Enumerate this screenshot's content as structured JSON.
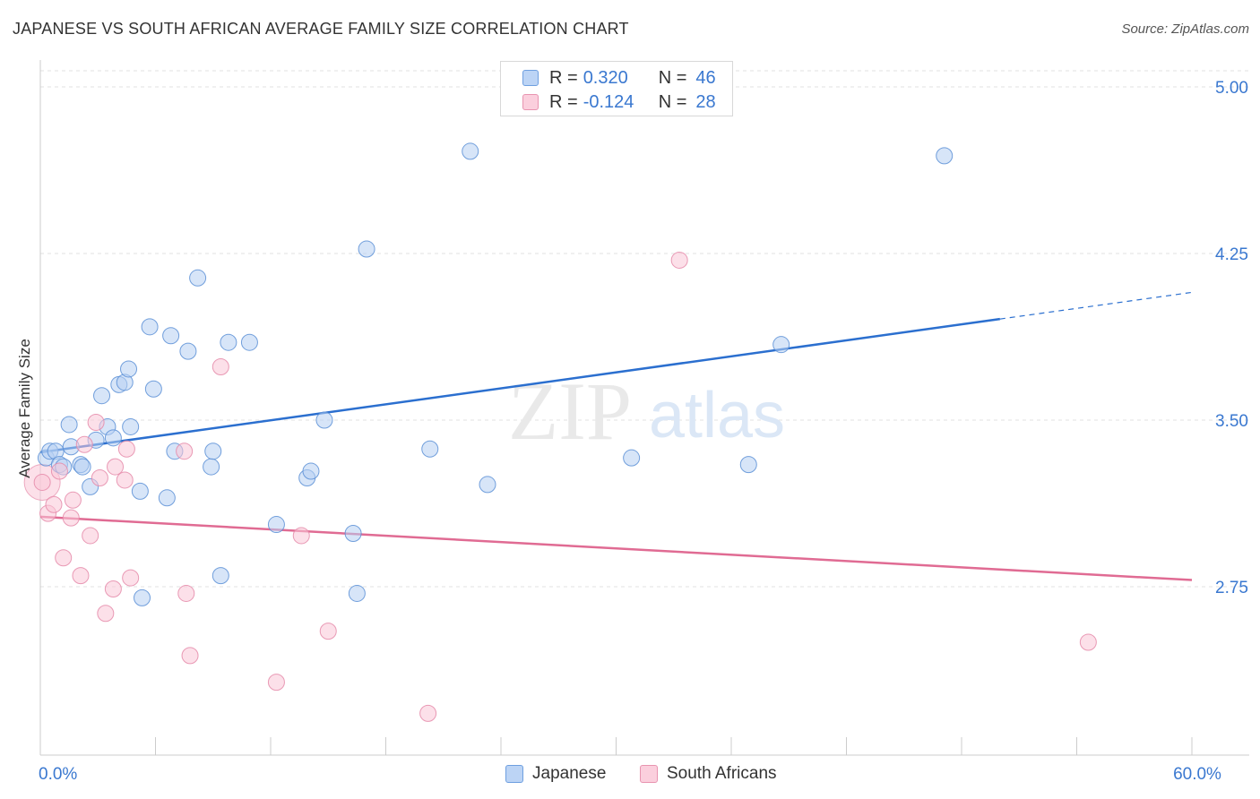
{
  "header": {
    "title": "JAPANESE VS SOUTH AFRICAN AVERAGE FAMILY SIZE CORRELATION CHART",
    "source": "Source: ZipAtlas.com"
  },
  "watermark": {
    "zip": "ZIP",
    "atlas": "atlas"
  },
  "legend": {
    "series": [
      {
        "name": "Japanese",
        "r_label": "R =",
        "r_value": "0.320",
        "n_label": "N =",
        "n_value": "46",
        "fill": "#bcd4f5",
        "stroke": "#6e9fe0"
      },
      {
        "name": "South Africans",
        "r_label": "R =",
        "r_value": "-0.124",
        "n_label": "N =",
        "n_value": "28",
        "fill": "#fbcfdd",
        "stroke": "#e894b0"
      }
    ]
  },
  "colors": {
    "japanese_fill": "#b7d0f3",
    "japanese_stroke": "#5b8fd6",
    "japanese_line": "#2b6fcf",
    "south_africans_fill": "#f9c6d7",
    "south_africans_stroke": "#e58aa9",
    "south_africans_line": "#e06b93",
    "grid": "#e2e2e2",
    "tick_label": "#3a78d0"
  },
  "chart_data": {
    "type": "scatter",
    "title": "JAPANESE VS SOUTH AFRICAN AVERAGE FAMILY SIZE CORRELATION CHART",
    "xlabel": "",
    "ylabel": "Average Family Size",
    "xlim": [
      0,
      60
    ],
    "ylim": [
      2.0,
      5.1
    ],
    "x_tick_labels": [
      {
        "value": 0,
        "label": "0.0%"
      },
      {
        "value": 60,
        "label": "60.0%"
      }
    ],
    "y_ticks": [
      {
        "value": 5.0,
        "label": "5.00"
      },
      {
        "value": 4.25,
        "label": "4.25"
      },
      {
        "value": 3.5,
        "label": "3.50"
      },
      {
        "value": 2.75,
        "label": "2.75"
      }
    ],
    "x_minor_ticks": [
      0,
      6,
      12,
      18,
      24,
      30,
      36,
      42,
      48,
      54,
      60
    ],
    "series": [
      {
        "name": "Japanese",
        "points": [
          [
            0.3,
            3.33
          ],
          [
            0.5,
            3.36
          ],
          [
            0.8,
            3.36
          ],
          [
            1.0,
            3.3
          ],
          [
            1.2,
            3.29
          ],
          [
            1.5,
            3.48
          ],
          [
            1.6,
            3.38
          ],
          [
            2.1,
            3.3
          ],
          [
            2.2,
            3.29
          ],
          [
            2.6,
            3.2
          ],
          [
            2.9,
            3.41
          ],
          [
            3.2,
            3.61
          ],
          [
            3.5,
            3.47
          ],
          [
            3.8,
            3.42
          ],
          [
            4.1,
            3.66
          ],
          [
            4.4,
            3.67
          ],
          [
            4.6,
            3.73
          ],
          [
            4.7,
            3.47
          ],
          [
            5.2,
            3.18
          ],
          [
            5.3,
            2.7
          ],
          [
            5.7,
            3.92
          ],
          [
            5.9,
            3.64
          ],
          [
            6.6,
            3.15
          ],
          [
            6.8,
            3.88
          ],
          [
            7.0,
            3.36
          ],
          [
            7.7,
            3.81
          ],
          [
            8.2,
            4.14
          ],
          [
            8.9,
            3.29
          ],
          [
            9.0,
            3.36
          ],
          [
            9.4,
            2.8
          ],
          [
            9.8,
            3.85
          ],
          [
            10.9,
            3.85
          ],
          [
            12.3,
            3.03
          ],
          [
            13.9,
            3.24
          ],
          [
            14.1,
            3.27
          ],
          [
            14.8,
            3.5
          ],
          [
            16.3,
            2.99
          ],
          [
            16.5,
            2.72
          ],
          [
            17.0,
            4.27
          ],
          [
            20.3,
            3.37
          ],
          [
            22.4,
            4.71
          ],
          [
            23.3,
            3.21
          ],
          [
            30.8,
            3.33
          ],
          [
            36.9,
            3.3
          ],
          [
            38.6,
            3.84
          ],
          [
            47.1,
            4.69
          ]
        ],
        "trend": {
          "x_start": 0,
          "y_start": 3.355,
          "x_solid_end": 50,
          "y_solid_end": 3.955,
          "x_end": 60,
          "y_end": 4.075
        }
      },
      {
        "name": "South Africans",
        "points": [
          [
            0.1,
            3.22
          ],
          [
            0.4,
            3.08
          ],
          [
            0.7,
            3.12
          ],
          [
            1.0,
            3.27
          ],
          [
            1.2,
            2.88
          ],
          [
            1.6,
            3.06
          ],
          [
            1.7,
            3.14
          ],
          [
            2.1,
            2.8
          ],
          [
            2.3,
            3.39
          ],
          [
            2.6,
            2.98
          ],
          [
            2.9,
            3.49
          ],
          [
            3.1,
            3.24
          ],
          [
            3.4,
            2.63
          ],
          [
            3.8,
            2.74
          ],
          [
            3.9,
            3.29
          ],
          [
            4.4,
            3.23
          ],
          [
            4.5,
            3.37
          ],
          [
            4.7,
            2.79
          ],
          [
            7.5,
            3.36
          ],
          [
            7.6,
            2.72
          ],
          [
            7.8,
            2.44
          ],
          [
            9.4,
            3.74
          ],
          [
            12.3,
            2.32
          ],
          [
            13.6,
            2.98
          ],
          [
            15.0,
            2.55
          ],
          [
            20.2,
            2.18
          ],
          [
            33.3,
            4.22
          ],
          [
            54.6,
            2.5
          ]
        ],
        "trend": {
          "x_start": 0,
          "y_start": 3.065,
          "x_end": 60,
          "y_end": 2.78
        }
      }
    ]
  }
}
